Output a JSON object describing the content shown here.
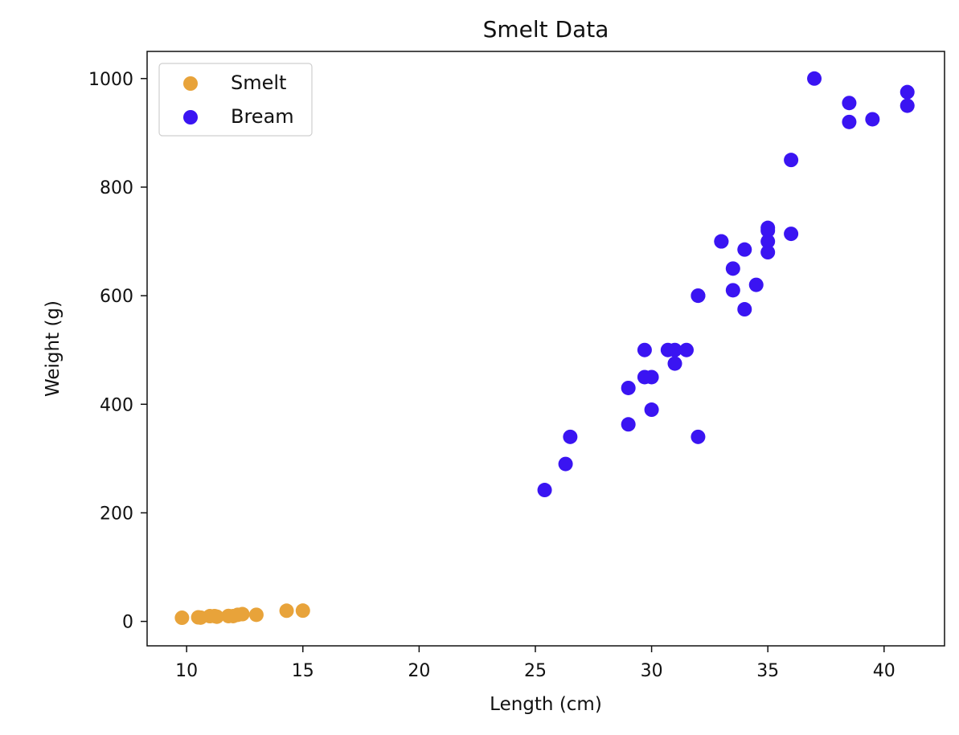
{
  "chart_data": {
    "type": "scatter",
    "title": "Smelt Data",
    "xlabel": "Length (cm)",
    "ylabel": "Weight (g)",
    "xlim": [
      8.3,
      42.6
    ],
    "ylim": [
      -45,
      1050
    ],
    "xticks": [
      10,
      15,
      20,
      25,
      30,
      35,
      40
    ],
    "yticks": [
      0,
      200,
      400,
      600,
      800,
      1000
    ],
    "legend": {
      "placement": "top-left"
    },
    "grid": false,
    "series": [
      {
        "name": "Smelt",
        "color": "#e8a33a",
        "points": [
          {
            "x": 9.8,
            "y": 6.7
          },
          {
            "x": 10.5,
            "y": 7.5
          },
          {
            "x": 10.6,
            "y": 7.0
          },
          {
            "x": 11.0,
            "y": 9.7
          },
          {
            "x": 11.2,
            "y": 9.8
          },
          {
            "x": 11.3,
            "y": 8.7
          },
          {
            "x": 11.8,
            "y": 10.0
          },
          {
            "x": 11.8,
            "y": 9.9
          },
          {
            "x": 12.0,
            "y": 9.8
          },
          {
            "x": 12.2,
            "y": 12.2
          },
          {
            "x": 12.4,
            "y": 13.4
          },
          {
            "x": 13.0,
            "y": 12.2
          },
          {
            "x": 14.3,
            "y": 19.7
          },
          {
            "x": 15.0,
            "y": 19.9
          }
        ]
      },
      {
        "name": "Bream",
        "color": "#3a14f2",
        "points": [
          {
            "x": 25.4,
            "y": 242.0
          },
          {
            "x": 26.3,
            "y": 290.0
          },
          {
            "x": 26.5,
            "y": 340.0
          },
          {
            "x": 29.0,
            "y": 363.0
          },
          {
            "x": 29.0,
            "y": 430.0
          },
          {
            "x": 29.7,
            "y": 450.0
          },
          {
            "x": 29.7,
            "y": 500.0
          },
          {
            "x": 30.0,
            "y": 390.0
          },
          {
            "x": 30.0,
            "y": 450.0
          },
          {
            "x": 30.7,
            "y": 500.0
          },
          {
            "x": 31.0,
            "y": 475.0
          },
          {
            "x": 31.0,
            "y": 500.0
          },
          {
            "x": 31.5,
            "y": 500.0
          },
          {
            "x": 32.0,
            "y": 340.0
          },
          {
            "x": 32.0,
            "y": 600.0
          },
          {
            "x": 32.0,
            "y": 600.0
          },
          {
            "x": 33.0,
            "y": 700.0
          },
          {
            "x": 33.0,
            "y": 700.0
          },
          {
            "x": 33.5,
            "y": 610.0
          },
          {
            "x": 33.5,
            "y": 650.0
          },
          {
            "x": 34.0,
            "y": 575.0
          },
          {
            "x": 34.0,
            "y": 685.0
          },
          {
            "x": 34.5,
            "y": 620.0
          },
          {
            "x": 35.0,
            "y": 680.0
          },
          {
            "x": 35.0,
            "y": 700.0
          },
          {
            "x": 35.0,
            "y": 725.0
          },
          {
            "x": 35.0,
            "y": 720.0
          },
          {
            "x": 36.0,
            "y": 714.0
          },
          {
            "x": 36.0,
            "y": 850.0
          },
          {
            "x": 37.0,
            "y": 1000.0
          },
          {
            "x": 38.5,
            "y": 920.0
          },
          {
            "x": 38.5,
            "y": 955.0
          },
          {
            "x": 39.5,
            "y": 925.0
          },
          {
            "x": 41.0,
            "y": 975.0
          },
          {
            "x": 41.0,
            "y": 950.0
          }
        ]
      }
    ]
  }
}
